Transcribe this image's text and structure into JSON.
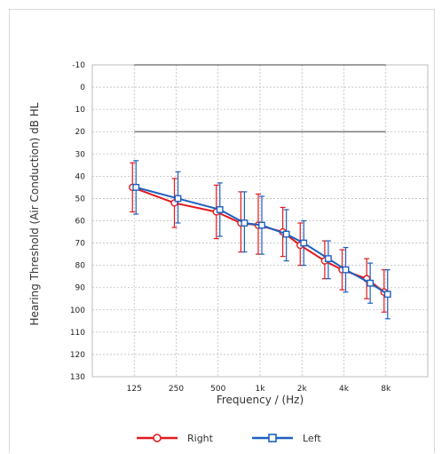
{
  "chart_data": {
    "type": "line",
    "title": "",
    "xlabel": "Frequency / (Hz)",
    "ylabel": "Hearing Threshold (Air Conduction) dB HL",
    "y_inverted": true,
    "ylim": [
      -10,
      130
    ],
    "y_ticks": [
      -10,
      0,
      10,
      20,
      30,
      40,
      50,
      60,
      70,
      80,
      90,
      100,
      110,
      120,
      130
    ],
    "x_scale": "log",
    "xlim_hz": [
      62.5,
      16000
    ],
    "x_tick_values_hz": [
      125,
      250,
      500,
      1000,
      2000,
      4000,
      8000
    ],
    "x_tick_labels": [
      "125",
      "250",
      "500",
      "1k",
      "2k",
      "4k",
      "8k"
    ],
    "grid": true,
    "legend": "bottom",
    "reference_lines_db": [
      -10,
      20
    ],
    "series": [
      {
        "name": "Right",
        "color": "#e31a1c",
        "marker": "circle",
        "x_hz": [
          125,
          250,
          500,
          750,
          1000,
          1500,
          2000,
          3000,
          4000,
          6000,
          8000
        ],
        "y_db": [
          45,
          52,
          56,
          61,
          62,
          65,
          71,
          78,
          82,
          86,
          92
        ],
        "error_low": [
          34,
          41,
          44,
          47,
          48,
          54,
          61,
          69,
          73,
          77,
          82
        ],
        "error_high": [
          56,
          63,
          68,
          74,
          75,
          76,
          80,
          86,
          91,
          95,
          101
        ]
      },
      {
        "name": "Left",
        "color": "#1f5fbf",
        "marker": "square",
        "x_hz": [
          125,
          250,
          500,
          750,
          1000,
          1500,
          2000,
          3000,
          4000,
          6000,
          8000
        ],
        "y_db": [
          45,
          50,
          55,
          61,
          62,
          66,
          70,
          77,
          82,
          88,
          93
        ],
        "error_low": [
          33,
          38,
          43,
          47,
          49,
          55,
          60,
          69,
          72,
          79,
          82
        ],
        "error_high": [
          57,
          61,
          67,
          74,
          75,
          78,
          80,
          86,
          92,
          97,
          104
        ]
      }
    ]
  }
}
